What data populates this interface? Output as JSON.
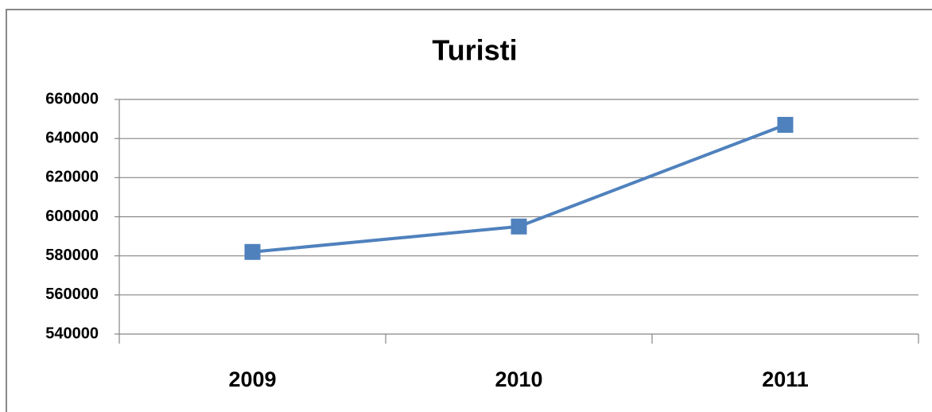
{
  "chart_data": {
    "type": "line",
    "title": "Turisti",
    "categories": [
      "2009",
      "2010",
      "2011"
    ],
    "values": [
      582000,
      595000,
      647000
    ],
    "color": "#4f81bd",
    "ylim": [
      540000,
      660000
    ],
    "yticks": [
      540000,
      560000,
      580000,
      600000,
      620000,
      640000,
      660000
    ],
    "grid": true
  }
}
